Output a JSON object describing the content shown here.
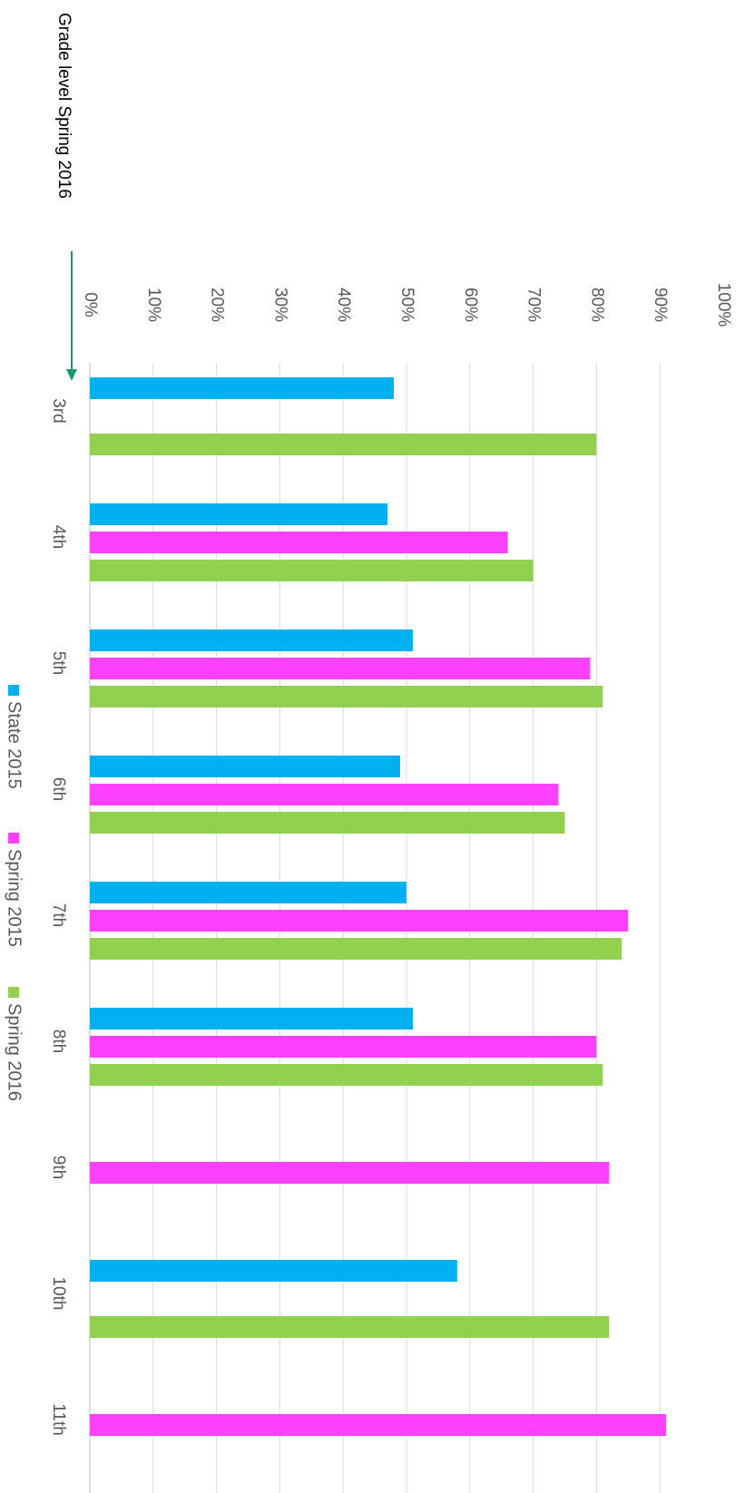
{
  "chart_data": {
    "type": "bar",
    "orientation": "horizontal",
    "categories": [
      "3rd",
      "4th",
      "5th",
      "6th",
      "7th",
      "8th",
      "9th",
      "10th",
      "11th"
    ],
    "series": [
      {
        "name": "State 2015",
        "color": "#00b0f0",
        "values": [
          48,
          47,
          51,
          49,
          50,
          51,
          null,
          58,
          null
        ]
      },
      {
        "name": "Spring 2015",
        "color": "#ff40ff",
        "values": [
          null,
          66,
          79,
          74,
          85,
          80,
          82,
          null,
          91
        ]
      },
      {
        "name": "Spring 2016",
        "color": "#92d050",
        "values": [
          80,
          70,
          81,
          75,
          84,
          81,
          null,
          82,
          null
        ]
      }
    ],
    "xlim": [
      0,
      100
    ],
    "tick_labels": [
      "0%",
      "10%",
      "20%",
      "30%",
      "40%",
      "50%",
      "60%",
      "70%",
      "80%",
      "90%",
      "100%"
    ],
    "grid": true,
    "legend_position": "bottom",
    "annotation": {
      "text": "Grade level Spring 2016",
      "arrow_color": "#1a9a6c"
    },
    "rotation": "rotated 90 degrees clockwise"
  }
}
